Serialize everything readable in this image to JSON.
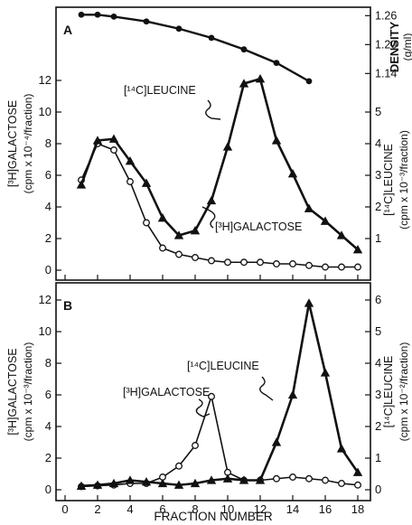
{
  "chart_data": [
    {
      "panel": "A",
      "type": "line",
      "x_label": "FRACTION NUMBER",
      "x_ticks": [
        0,
        2,
        4,
        6,
        8,
        10,
        12,
        14,
        16,
        18
      ],
      "xlim": [
        0,
        18.5
      ],
      "density": {
        "axis_label": "DENSITY",
        "axis_unit": "(g/ml)",
        "ticks": [
          "1.26",
          "1.20",
          "1.14"
        ],
        "ylim": [
          1.12,
          1.27
        ],
        "x": [
          1,
          2,
          3,
          5,
          7,
          9,
          11,
          13,
          15
        ],
        "y": [
          1.262,
          1.262,
          1.258,
          1.248,
          1.233,
          1.214,
          1.19,
          1.162,
          1.124
        ]
      },
      "left_axis": {
        "label_line1": "[³H]GALACTOSE",
        "label_line2": "(cpm x 10⁻⁴/fraction)",
        "ticks": [
          0,
          2,
          4,
          6,
          8,
          10,
          12
        ],
        "ylim": [
          0,
          12.4
        ]
      },
      "right_axis": {
        "label_line1": "[¹⁴C]LEUCINE",
        "label_line2": "(cpm x 10⁻³/fraction)",
        "ticks": [
          1,
          2,
          3,
          4,
          5
        ],
        "ylim": [
          0,
          6.2
        ]
      },
      "series": [
        {
          "name": "[³H]GALACTOSE",
          "marker": "open-circle",
          "axis": "left",
          "x": [
            1,
            2,
            3,
            4,
            5,
            6,
            7,
            8,
            9,
            10,
            11,
            12,
            13,
            14,
            15,
            16,
            17,
            18
          ],
          "y": [
            5.7,
            8.0,
            7.6,
            5.6,
            3.0,
            1.4,
            1.0,
            0.8,
            0.6,
            0.5,
            0.5,
            0.5,
            0.4,
            0.4,
            0.3,
            0.2,
            0.2,
            0.2
          ]
        },
        {
          "name": "[¹⁴C]LEUCINE",
          "marker": "filled-triangle",
          "axis": "right",
          "x": [
            1,
            2,
            3,
            4,
            5,
            6,
            7,
            8,
            9,
            10,
            11,
            12,
            13,
            14,
            15,
            16,
            17,
            18
          ],
          "y": [
            2.7,
            4.1,
            4.15,
            3.45,
            2.75,
            1.65,
            1.1,
            1.25,
            2.2,
            3.9,
            5.9,
            6.05,
            4.1,
            3.05,
            1.95,
            1.55,
            1.1,
            0.65
          ]
        }
      ],
      "annotations": [
        {
          "text": "[¹⁴C]LEUCINE",
          "target": "[¹⁴C]LEUCINE",
          "at": [
            10.6,
            5.3
          ]
        },
        {
          "text": "[³H]GALACTOSE",
          "target": "[³H]GALACTOSE",
          "at": [
            8.3,
            1.2
          ]
        }
      ]
    },
    {
      "panel": "B",
      "type": "line",
      "x_label": "FRACTION NUMBER",
      "x_ticks": [
        0,
        2,
        4,
        6,
        8,
        10,
        12,
        14,
        16,
        18
      ],
      "xlim": [
        0,
        18.5
      ],
      "left_axis": {
        "label_line1": "[³H]GALACTOSE",
        "label_line2": "(cpm x 10⁻³/fraction)",
        "ticks": [
          0,
          2,
          4,
          6,
          8,
          10,
          12
        ],
        "ylim": [
          0,
          12.4
        ]
      },
      "right_axis": {
        "label_line1": "[¹⁴C]LEUCINE",
        "label_line2": "(cpm x 10⁻²/fraction)",
        "ticks": [
          0,
          1,
          2,
          3,
          4,
          5,
          6
        ],
        "ylim": [
          0,
          6.2
        ]
      },
      "series": [
        {
          "name": "[³H]GALACTOSE",
          "marker": "open-circle",
          "axis": "left",
          "x": [
            1,
            2,
            3,
            4,
            5,
            6,
            7,
            8,
            9,
            10,
            11,
            12,
            13,
            14,
            15,
            16,
            17,
            18
          ],
          "y": [
            0.2,
            0.25,
            0.3,
            0.4,
            0.4,
            0.8,
            1.5,
            2.8,
            5.9,
            1.1,
            0.6,
            0.6,
            0.7,
            0.8,
            0.7,
            0.6,
            0.4,
            0.3
          ]
        },
        {
          "name": "[¹⁴C]LEUCINE",
          "marker": "filled-triangle",
          "axis": "right",
          "x": [
            1,
            2,
            3,
            4,
            5,
            6,
            7,
            8,
            9,
            10,
            11,
            12,
            13,
            14,
            15,
            16,
            17,
            18
          ],
          "y": [
            0.12,
            0.15,
            0.2,
            0.3,
            0.25,
            0.2,
            0.15,
            0.2,
            0.3,
            0.35,
            0.3,
            0.3,
            1.5,
            3.0,
            5.9,
            3.7,
            1.3,
            0.55
          ]
        }
      ],
      "annotations": [
        {
          "text": "[¹⁴C]LEUCINE",
          "target": "[¹⁴C]LEUCINE",
          "at": [
            14.7,
            4.9
          ]
        },
        {
          "text": "[³H]GALACTOSE",
          "target": "[³H]GALACTOSE",
          "at": [
            8.7,
            5.1
          ]
        }
      ]
    }
  ]
}
